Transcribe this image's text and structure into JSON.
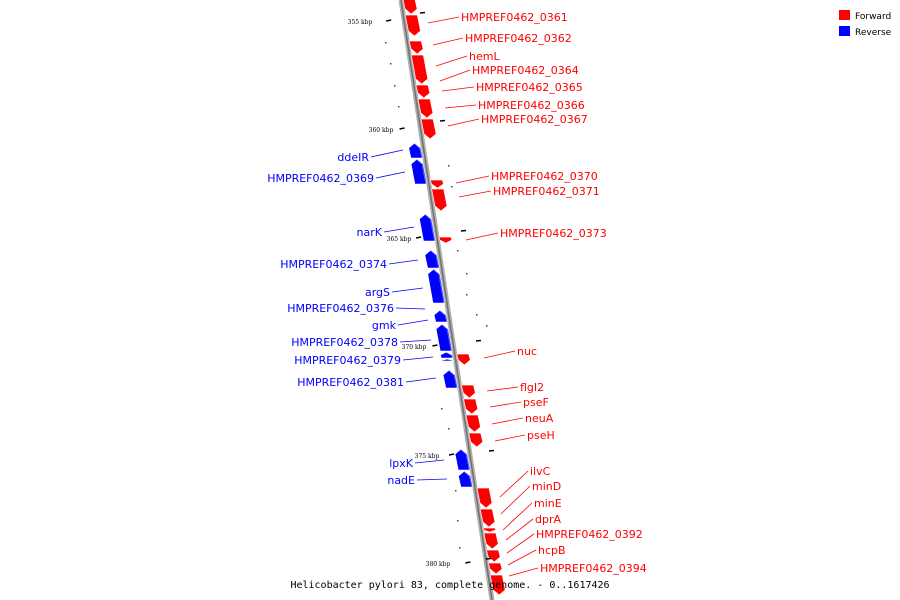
{
  "caption": "Helicobacter pylori 83, complete genome. - 0..1617426",
  "legend": {
    "forward": {
      "label": "Forward",
      "color": "#ff0000"
    },
    "reverse": {
      "label": "Reverse",
      "color": "#0000ff"
    }
  },
  "scale_marks": [
    "355 kbp",
    "360 kbp",
    "365 kbp",
    "370 kbp",
    "375 kbp",
    "380 kbp"
  ],
  "forward_genes": [
    "HMPREF0462_0361",
    "HMPREF0462_0362",
    "hemL",
    "HMPREF0462_0364",
    "HMPREF0462_0365",
    "HMPREF0462_0366",
    "HMPREF0462_0367",
    "HMPREF0462_0370",
    "HMPREF0462_0371",
    "HMPREF0462_0373",
    "nuc",
    "flgI2",
    "pseF",
    "neuA",
    "pseH",
    "ilvC",
    "minD",
    "minE",
    "dprA",
    "HMPREF0462_0392",
    "hcpB",
    "HMPREF0462_0394"
  ],
  "reverse_genes": [
    "ddeIR",
    "HMPREF0462_0369",
    "narK",
    "HMPREF0462_0374",
    "argS",
    "HMPREF0462_0376",
    "gmk",
    "HMPREF0462_0378",
    "HMPREF0462_0379",
    "HMPREF0462_0381",
    "lpxK",
    "nadE"
  ]
}
